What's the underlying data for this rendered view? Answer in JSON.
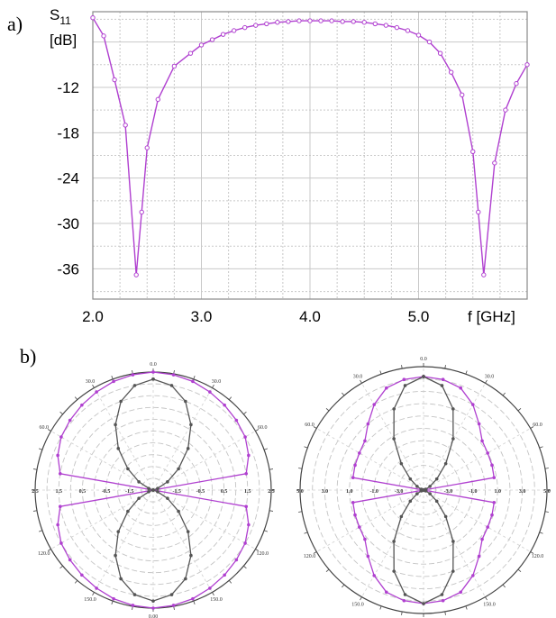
{
  "panels": {
    "a": "a)",
    "b": "b)"
  },
  "chart_data": [
    {
      "type": "line",
      "title": "",
      "ylabel_line1": "S",
      "ylabel_sub": "11",
      "ylabel_line2": "[dB]",
      "xlabel": "f [GHz]",
      "xlim": [
        2.0,
        6.0
      ],
      "ylim": [
        -40,
        -2
      ],
      "yticks": [
        -12,
        -18,
        -24,
        -30,
        -36
      ],
      "xticks": [
        2.0,
        3.0,
        4.0,
        5.0
      ],
      "grid": true,
      "color": "#b040d0",
      "series": [
        {
          "x": [
            2.0,
            2.1,
            2.2,
            2.3,
            2.4,
            2.45,
            2.5,
            2.6,
            2.75,
            2.9,
            3.0,
            3.1,
            3.2,
            3.3,
            3.4,
            3.5,
            3.6,
            3.7,
            3.8,
            3.9,
            4.0,
            4.1,
            4.2,
            4.3,
            4.4,
            4.5,
            4.6,
            4.7,
            4.8,
            4.9,
            5.0,
            5.1,
            5.2,
            5.3,
            5.4,
            5.5,
            5.55,
            5.6,
            5.7,
            5.8,
            5.9,
            6.0
          ],
          "y": [
            -2.8,
            -5.2,
            -11.0,
            -17.0,
            -36.8,
            -28.5,
            -20.0,
            -13.6,
            -9.2,
            -7.5,
            -6.4,
            -5.7,
            -5.0,
            -4.5,
            -4.1,
            -3.8,
            -3.6,
            -3.4,
            -3.3,
            -3.2,
            -3.2,
            -3.2,
            -3.2,
            -3.3,
            -3.3,
            -3.4,
            -3.6,
            -3.8,
            -4.1,
            -4.5,
            -5.1,
            -6.0,
            -7.5,
            -10.0,
            -13.0,
            -20.5,
            -28.5,
            -36.8,
            -22.0,
            -15.0,
            -11.5,
            -9.0
          ]
        }
      ]
    },
    {
      "type": "polar",
      "rmax": 2.5,
      "radial_ticks": [
        "2.5",
        "1.5",
        "0.5",
        "-0.5",
        "-1.5"
      ],
      "angle_ticks": [
        "0.0",
        "30.0",
        "60.0",
        "30.0",
        "60.0",
        "150.0",
        "120.0",
        "0.00",
        "150.0",
        "120.0"
      ],
      "series": [
        {
          "name": "",
          "color": "#b040d0",
          "r": [
            2.5,
            2.48,
            2.45,
            2.4,
            2.35,
            2.3,
            2.25,
            2.15,
            2.0,
            0.0
          ]
        },
        {
          "name": "",
          "color": "#555555",
          "r": [
            2.35,
            2.25,
            2.0,
            1.6,
            1.15,
            0.7,
            0.35,
            0.1,
            0.0,
            0.0
          ]
        }
      ]
    },
    {
      "type": "polar",
      "rmax": 5.0,
      "radial_ticks": [
        "5.0",
        "3.0",
        "1.0",
        "-1.0",
        "-3.0"
      ],
      "angle_ticks": [
        "0.0",
        "30.0",
        "60.0",
        "30.0",
        "60.0",
        "150.0",
        "120.0",
        "0.00",
        "150.0",
        "120.0"
      ],
      "series": [
        {
          "name": "",
          "color": "#b040d0",
          "r": [
            4.6,
            4.55,
            4.4,
            4.0,
            3.5,
            3.1,
            3.0,
            2.95,
            2.9,
            0.0
          ]
        },
        {
          "name": "",
          "color": "#555555",
          "r": [
            4.6,
            4.3,
            3.5,
            2.4,
            1.4,
            0.7,
            0.3,
            0.1,
            0.0,
            0.0
          ]
        }
      ]
    }
  ]
}
